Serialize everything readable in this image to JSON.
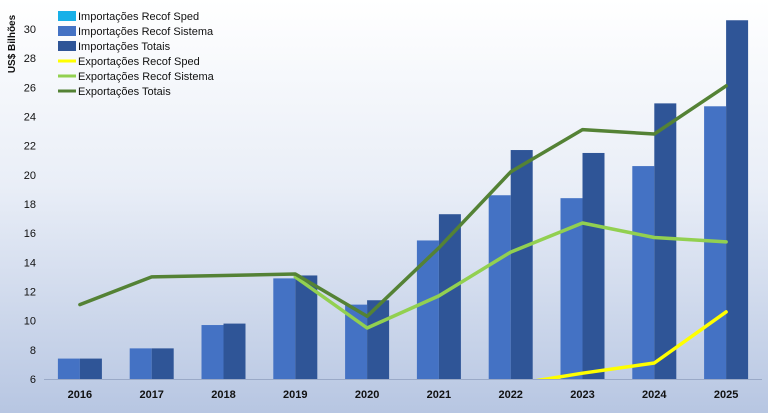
{
  "chart_data": {
    "type": "bar",
    "ylabel": "US$ Bilhões",
    "xlabel": "",
    "ylim": [
      6,
      31
    ],
    "yticks": [
      6,
      8,
      10,
      12,
      14,
      16,
      18,
      20,
      22,
      24,
      26,
      28,
      30
    ],
    "categories": [
      "2016",
      "2017",
      "2018",
      "2019",
      "2020",
      "2021",
      "2022",
      "2023",
      "2024",
      "2025"
    ],
    "grid": false,
    "legend_position": "top-left",
    "series": [
      {
        "name": "Importações Recof Sped",
        "kind": "bar",
        "color": "#17b0e8",
        "values": [
          null,
          null,
          null,
          null,
          null,
          null,
          null,
          null,
          null,
          null
        ]
      },
      {
        "name": "Importações Recof Sistema",
        "kind": "bar",
        "color": "#4472c4",
        "values": [
          7.4,
          8.1,
          9.7,
          12.9,
          11.1,
          15.5,
          18.6,
          18.4,
          20.6,
          24.7
        ]
      },
      {
        "name": "Importações Totais",
        "kind": "bar",
        "color": "#2f5597",
        "values": [
          7.4,
          8.1,
          9.8,
          13.1,
          11.4,
          17.3,
          21.7,
          21.5,
          24.9,
          30.6
        ]
      },
      {
        "name": "Exportações Recof Sped",
        "kind": "line",
        "color": "#ffff00",
        "values": [
          null,
          null,
          null,
          null,
          null,
          null,
          null,
          6.4,
          7.1,
          10.6
        ]
      },
      {
        "name": "Exportações Recof Sistema",
        "kind": "line",
        "color": "#92d050",
        "values": [
          null,
          null,
          null,
          13.0,
          9.5,
          11.7,
          14.7,
          16.7,
          15.7,
          15.4
        ]
      },
      {
        "name": "Exportações Totais",
        "kind": "line",
        "color": "#548235",
        "values": [
          11.1,
          13.0,
          13.1,
          13.2,
          10.3,
          15.0,
          20.2,
          23.1,
          22.8,
          26.1
        ]
      }
    ]
  }
}
